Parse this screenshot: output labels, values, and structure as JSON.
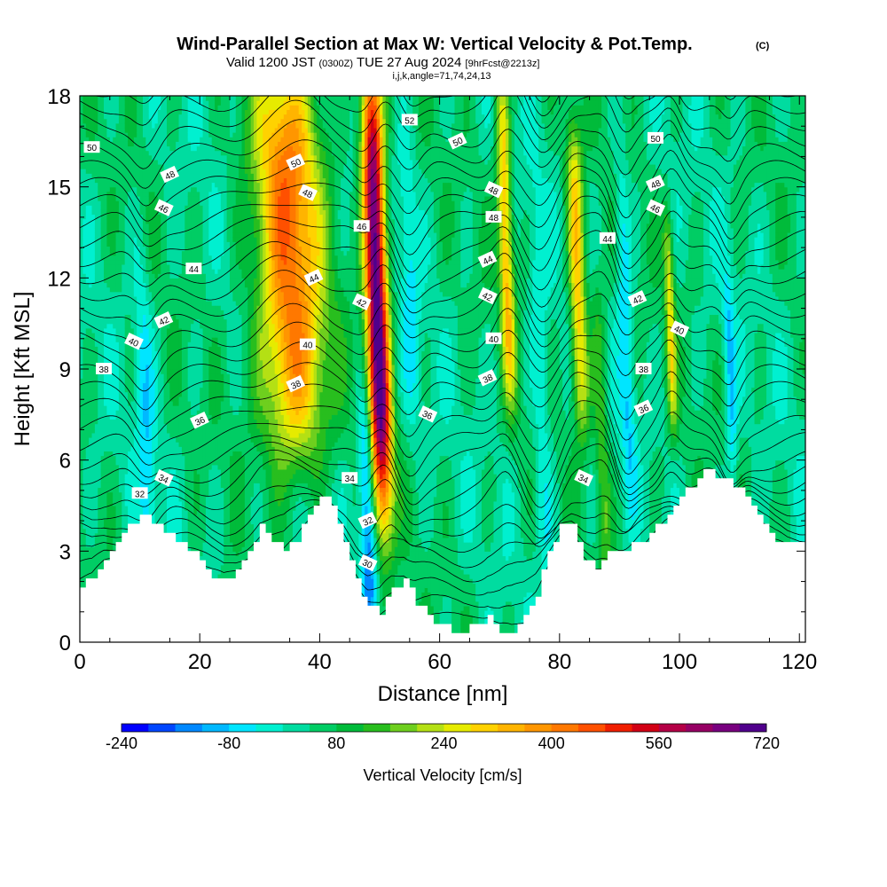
{
  "header": {
    "title": "Wind-Parallel Section at Max W: Vertical Velocity & Pot.Temp.",
    "copyright": "(C)",
    "valid_prefix": "Valid 1200 JST",
    "valid_utc": "(0300Z)",
    "valid_date": "TUE 27 Aug 2024",
    "forecast_tag": "[9hrFcst@2213z]",
    "indices": "i,j,k,angle=71,74,24,13"
  },
  "colors": {
    "scale": [
      "#0000ff",
      "#0046ff",
      "#0088ff",
      "#00b8ff",
      "#00e5ff",
      "#00f0d0",
      "#00dca0",
      "#00cd64",
      "#00bb3a",
      "#28be1e",
      "#6ecf1e",
      "#b4e014",
      "#e6eb00",
      "#ffd200",
      "#ffb400",
      "#ff9600",
      "#ff7800",
      "#ff5000",
      "#f01e00",
      "#d20014",
      "#b40046",
      "#960064",
      "#78007f",
      "#50008c"
    ],
    "terrain": "#ffffff",
    "contour": "#000000"
  },
  "chart_data": {
    "type": "heatmap",
    "title": "Wind-Parallel Section at Max W: Vertical Velocity & Pot.Temp.",
    "xlabel": "Distance [nm]",
    "ylabel": "Height [Kft MSL]",
    "xlim": [
      0,
      121
    ],
    "ylim": [
      0,
      18
    ],
    "xticks": [
      "0",
      "20",
      "40",
      "60",
      "80",
      "100",
      "120"
    ],
    "yticks": [
      "0",
      "3",
      "6",
      "9",
      "12",
      "15",
      "18"
    ],
    "colorbar": {
      "label": "Vertical Velocity [cm/s]",
      "range": [
        -240,
        720
      ],
      "step": 40,
      "tick_labels": [
        "-240",
        "-80",
        "80",
        "240",
        "400",
        "560",
        "720"
      ]
    },
    "terrain_height_kft": [
      [
        0,
        1.9
      ],
      [
        2,
        2.0
      ],
      [
        4,
        2.8
      ],
      [
        6,
        3.2
      ],
      [
        8,
        3.8
      ],
      [
        10,
        4.2
      ],
      [
        12,
        4.0
      ],
      [
        14,
        3.6
      ],
      [
        16,
        3.4
      ],
      [
        18,
        3.1
      ],
      [
        20,
        2.6
      ],
      [
        22,
        2.2
      ],
      [
        24,
        2.0
      ],
      [
        26,
        2.4
      ],
      [
        28,
        3.0
      ],
      [
        30,
        3.8
      ],
      [
        32,
        3.4
      ],
      [
        34,
        3.0
      ],
      [
        36,
        3.4
      ],
      [
        38,
        4.2
      ],
      [
        40,
        4.9
      ],
      [
        42,
        4.4
      ],
      [
        44,
        3.4
      ],
      [
        46,
        2.0
      ],
      [
        48,
        1.2
      ],
      [
        50,
        1.0
      ],
      [
        52,
        1.8
      ],
      [
        54,
        2.0
      ],
      [
        56,
        1.3
      ],
      [
        58,
        0.8
      ],
      [
        60,
        0.5
      ],
      [
        62,
        0.4
      ],
      [
        64,
        0.4
      ],
      [
        66,
        0.6
      ],
      [
        68,
        0.8
      ],
      [
        70,
        0.4
      ],
      [
        72,
        0.4
      ],
      [
        74,
        0.8
      ],
      [
        76,
        1.6
      ],
      [
        78,
        2.9
      ],
      [
        80,
        3.8
      ],
      [
        82,
        3.8
      ],
      [
        84,
        2.8
      ],
      [
        86,
        2.4
      ],
      [
        88,
        2.9
      ],
      [
        90,
        3.0
      ],
      [
        92,
        3.2
      ],
      [
        94,
        3.4
      ],
      [
        96,
        3.8
      ],
      [
        98,
        4.2
      ],
      [
        100,
        4.8
      ],
      [
        102,
        5.2
      ],
      [
        104,
        5.6
      ],
      [
        106,
        5.5
      ],
      [
        108,
        5.3
      ],
      [
        110,
        5.1
      ],
      [
        112,
        4.4
      ],
      [
        114,
        3.8
      ],
      [
        116,
        3.4
      ],
      [
        118,
        3.2
      ],
      [
        120,
        3.4
      ],
      [
        121,
        3.6
      ]
    ],
    "updrafts": [
      {
        "x": 35,
        "y_top": 18,
        "y_bottom": 7,
        "peak_cms": 420,
        "width_nm": 5.5
      },
      {
        "x": 49.5,
        "y_top": 18,
        "y_bottom": 5,
        "peak_cms": 720,
        "width_nm": 1.8
      },
      {
        "x": 71,
        "y_top": 18,
        "y_bottom": 9,
        "peak_cms": 320,
        "width_nm": 1.2
      },
      {
        "x": 83,
        "y_top": 16,
        "y_bottom": 8,
        "peak_cms": 320,
        "width_nm": 1.4
      },
      {
        "x": 98.5,
        "y_top": 13,
        "y_bottom": 8,
        "peak_cms": 240,
        "width_nm": 0.8
      },
      {
        "x": 87,
        "y_top": 11,
        "y_bottom": 3,
        "peak_cms": 160,
        "width_nm": 1.2
      }
    ],
    "downdrafts": [
      {
        "x": 11,
        "y_top": 12,
        "y_bottom": 3,
        "min_cms": -60,
        "width_nm": 1.5
      },
      {
        "x": 48,
        "y_top": 7,
        "y_bottom": 1.5,
        "min_cms": -160,
        "width_nm": 1.3
      },
      {
        "x": 55,
        "y_top": 16,
        "y_bottom": 8,
        "min_cms": -40,
        "width_nm": 1.5
      },
      {
        "x": 77,
        "y_top": 14,
        "y_bottom": 2,
        "min_cms": -40,
        "width_nm": 1.5
      },
      {
        "x": 91,
        "y_top": 15,
        "y_bottom": 6,
        "min_cms": -80,
        "width_nm": 1.2
      },
      {
        "x": 108.5,
        "y_top": 11,
        "y_bottom": 6,
        "min_cms": -80,
        "width_nm": 0.9
      }
    ],
    "potential_temperature": {
      "levels_k": [
        "30",
        "32",
        "34",
        "36",
        "38",
        "40",
        "42",
        "44",
        "46",
        "48",
        "50",
        "52"
      ],
      "labels": [
        {
          "text": "50",
          "x": 2,
          "y": 16.3
        },
        {
          "text": "48",
          "x": 15,
          "y": 15.4
        },
        {
          "text": "46",
          "x": 14,
          "y": 14.3
        },
        {
          "text": "44",
          "x": 19,
          "y": 12.3
        },
        {
          "text": "42",
          "x": 14,
          "y": 10.6
        },
        {
          "text": "40",
          "x": 9,
          "y": 9.9
        },
        {
          "text": "38",
          "x": 4,
          "y": 9.0
        },
        {
          "text": "36",
          "x": 20,
          "y": 7.3
        },
        {
          "text": "34",
          "x": 14,
          "y": 5.4
        },
        {
          "text": "32",
          "x": 10,
          "y": 4.9
        },
        {
          "text": "50",
          "x": 36,
          "y": 15.8
        },
        {
          "text": "48",
          "x": 38,
          "y": 14.8
        },
        {
          "text": "46",
          "x": 47,
          "y": 13.7
        },
        {
          "text": "44",
          "x": 39,
          "y": 12.0
        },
        {
          "text": "42",
          "x": 47,
          "y": 11.2
        },
        {
          "text": "40",
          "x": 38,
          "y": 9.8
        },
        {
          "text": "38",
          "x": 36,
          "y": 8.5
        },
        {
          "text": "36",
          "x": 58,
          "y": 7.5
        },
        {
          "text": "34",
          "x": 45,
          "y": 5.4
        },
        {
          "text": "32",
          "x": 48,
          "y": 4.0
        },
        {
          "text": "30",
          "x": 48,
          "y": 2.6
        },
        {
          "text": "52",
          "x": 55,
          "y": 17.2
        },
        {
          "text": "50",
          "x": 63,
          "y": 16.5
        },
        {
          "text": "48",
          "x": 69,
          "y": 14.9
        },
        {
          "text": "48",
          "x": 69,
          "y": 14.0
        },
        {
          "text": "44",
          "x": 68,
          "y": 12.6
        },
        {
          "text": "42",
          "x": 68,
          "y": 11.4
        },
        {
          "text": "40",
          "x": 69,
          "y": 10.0
        },
        {
          "text": "38",
          "x": 68,
          "y": 8.7
        },
        {
          "text": "34",
          "x": 84,
          "y": 5.4
        },
        {
          "text": "50",
          "x": 96,
          "y": 16.6
        },
        {
          "text": "48",
          "x": 96,
          "y": 15.1
        },
        {
          "text": "46",
          "x": 96,
          "y": 14.3
        },
        {
          "text": "44",
          "x": 88,
          "y": 13.3
        },
        {
          "text": "42",
          "x": 93,
          "y": 11.3
        },
        {
          "text": "40",
          "x": 100,
          "y": 10.3
        },
        {
          "text": "38",
          "x": 94,
          "y": 9.0
        },
        {
          "text": "36",
          "x": 94,
          "y": 7.7
        }
      ]
    },
    "grid": false,
    "legend": "colorbar-bottom"
  }
}
